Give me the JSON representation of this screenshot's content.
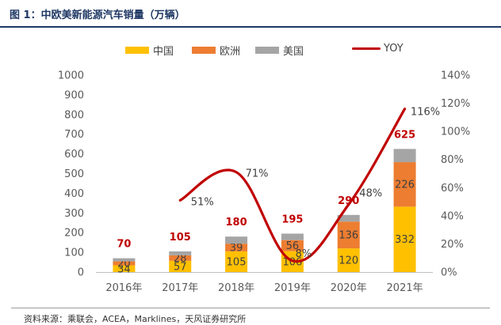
{
  "page": {
    "title": "图 1：中欧美新能源汽车销量（万辆）",
    "source": "资料来源：乘联会，ACEA，Marklines，天风证券研究所"
  },
  "legend": [
    {
      "label": "中国",
      "color": "#ffc000",
      "kind": "bar"
    },
    {
      "label": "欧洲",
      "color": "#ed7d31",
      "kind": "bar"
    },
    {
      "label": "美国",
      "color": "#a5a5a5",
      "kind": "bar"
    },
    {
      "label": "YOY",
      "color": "#c00000",
      "kind": "line"
    }
  ],
  "chart_data": {
    "type": "bar",
    "stacked": true,
    "title": "图 1：中欧美新能源汽车销量（万辆）",
    "categories": [
      "2016年",
      "2017年",
      "2018年",
      "2019年",
      "2020年",
      "2021年"
    ],
    "series": [
      {
        "name": "中国",
        "values": [
          34,
          57,
          105,
          106,
          120,
          332
        ],
        "color": "#ffc000"
      },
      {
        "name": "欧洲",
        "values": [
          20,
          28,
          39,
          56,
          136,
          226
        ],
        "color": "#ed7d31"
      },
      {
        "name": "美国",
        "values": [
          16,
          20,
          36,
          33,
          34,
          67
        ],
        "color": "#a5a5a5"
      }
    ],
    "totals": [
      70,
      105,
      180,
      195,
      290,
      625
    ],
    "line": {
      "name": "YOY",
      "axis": "right",
      "values": [
        null,
        51,
        71,
        8,
        48,
        116
      ],
      "labels": [
        "",
        "51%",
        "71%",
        "8%",
        "48%",
        "116%"
      ],
      "color": "#c00000"
    },
    "y_left": {
      "min": 0,
      "max": 1000,
      "ticks": [
        "0",
        "100",
        "200",
        "300",
        "400",
        "500",
        "600",
        "700",
        "800",
        "900",
        "1000"
      ]
    },
    "y_right": {
      "min": 0,
      "max": 140,
      "ticks": [
        "0%",
        "20%",
        "40%",
        "60%",
        "80%",
        "100%",
        "120%",
        "140%"
      ]
    },
    "grid": false,
    "legend_position": "top"
  }
}
